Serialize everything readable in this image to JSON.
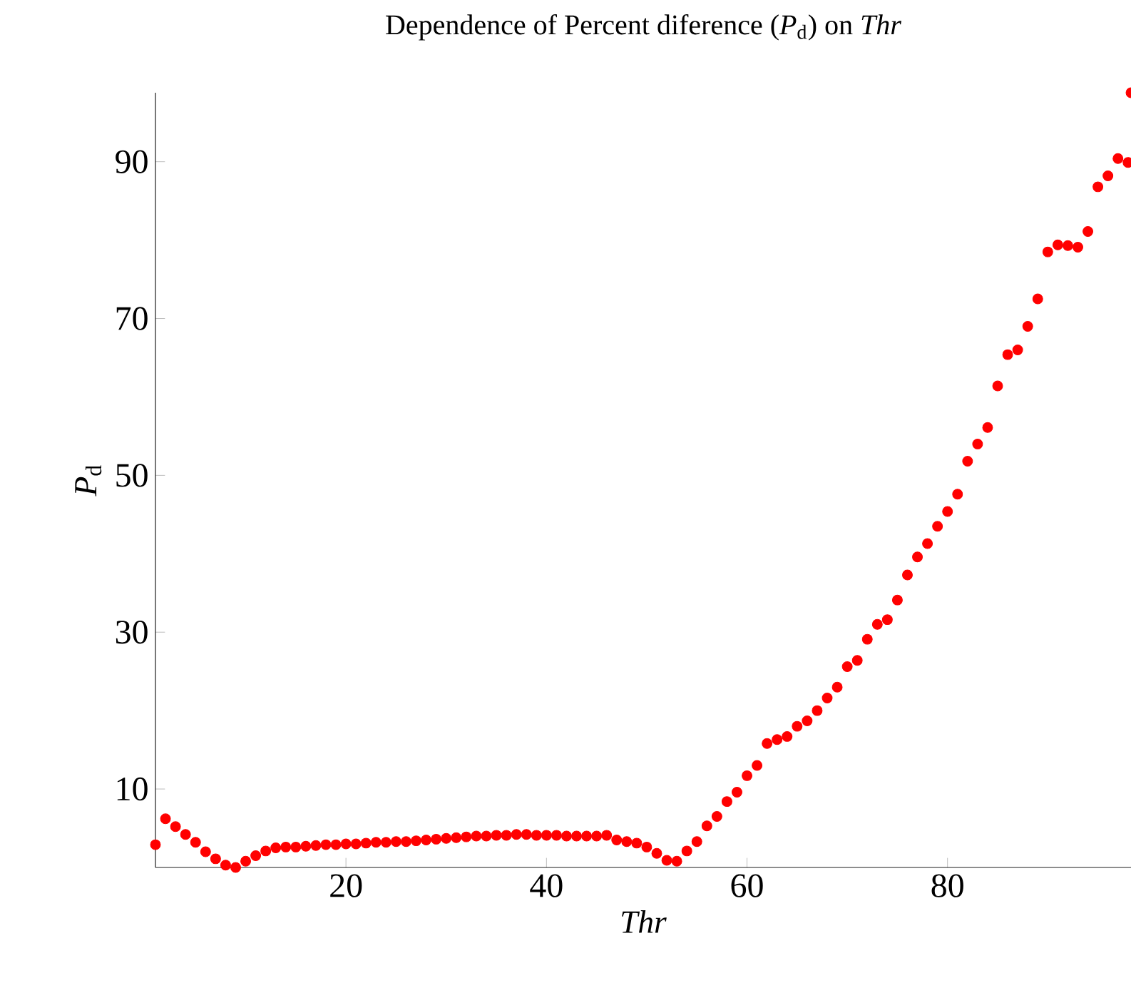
{
  "chart_data": {
    "type": "scatter",
    "title": "Dependence of Percent diference (*P*$_{d}$) on *Thr*",
    "xlabel": "*Thr*",
    "ylabel": "*P*$_{d}$",
    "x": [
      1,
      2,
      3,
      4,
      5,
      6,
      7,
      8,
      9,
      10,
      11,
      12,
      13,
      14,
      15,
      16,
      17,
      18,
      19,
      20,
      21,
      22,
      23,
      24,
      25,
      26,
      27,
      28,
      29,
      30,
      31,
      32,
      33,
      34,
      35,
      36,
      37,
      38,
      39,
      40,
      41,
      42,
      43,
      44,
      45,
      46,
      47,
      48,
      49,
      50,
      51,
      52,
      53,
      54,
      55,
      56,
      57,
      58,
      59,
      60,
      61,
      62,
      63,
      64,
      65,
      66,
      67,
      68,
      69,
      70,
      71,
      72,
      73,
      74,
      75,
      76,
      77,
      78,
      79,
      80,
      81,
      82,
      83,
      84,
      85,
      86,
      87,
      88,
      89,
      90,
      91,
      92,
      93,
      94,
      95,
      96,
      97,
      98,
      98.3
    ],
    "values": [
      2.9,
      6.2,
      5.2,
      4.2,
      3.2,
      2.0,
      1.1,
      0.3,
      0,
      0.8,
      1.5,
      2.1,
      2.5,
      2.6,
      2.6,
      2.7,
      2.8,
      2.9,
      2.9,
      3.0,
      3.0,
      3.1,
      3.2,
      3.2,
      3.3,
      3.3,
      3.4,
      3.5,
      3.6,
      3.7,
      3.8,
      3.9,
      4.0,
      4.0,
      4.1,
      4.1,
      4.2,
      4.2,
      4.1,
      4.1,
      4.1,
      4.0,
      4.0,
      4.0,
      4.0,
      4.1,
      3.5,
      3.3,
      3.1,
      2.6,
      1.8,
      0.9,
      0.8,
      2.1,
      3.3,
      5.3,
      6.5,
      8.4,
      9.6,
      11.7,
      13.0,
      15.8,
      16.3,
      16.7,
      18.0,
      18.7,
      20.0,
      21.6,
      23.0,
      25.6,
      26.4,
      29.1,
      31.0,
      31.6,
      34.1,
      37.3,
      39.6,
      41.3,
      43.5,
      45.4,
      47.6,
      51.8,
      54.0,
      56.1,
      61.4,
      65.4,
      66.0,
      69.0,
      72.5,
      78.5,
      79.4,
      79.3,
      79.1,
      81.1,
      86.8,
      88.2,
      90.4,
      89.9,
      98.8
    ],
    "color": "#ff0000",
    "xlim": [
      1,
      98.3
    ],
    "ylim": [
      0,
      98.8
    ],
    "xticks": [
      20,
      40,
      60,
      80
    ],
    "yticks": [
      10,
      30,
      50,
      70,
      90
    ]
  }
}
